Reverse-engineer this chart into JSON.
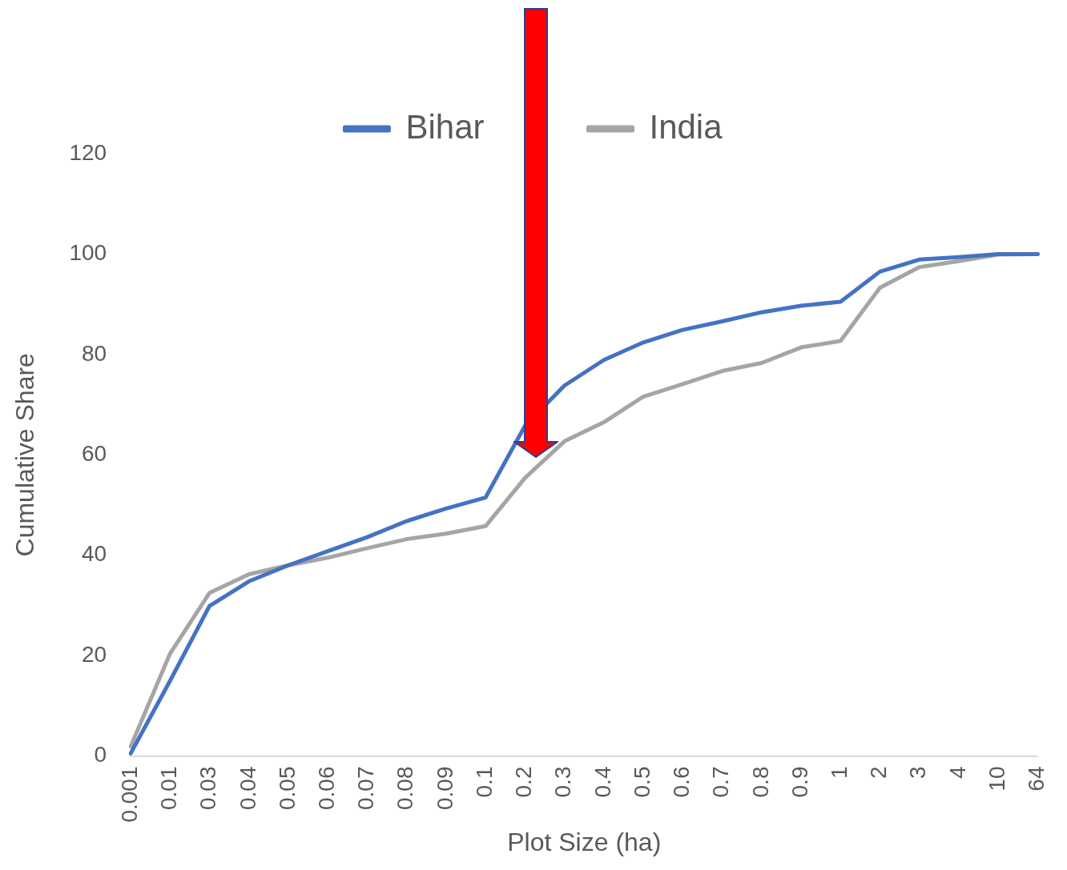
{
  "chart_data": {
    "type": "line",
    "xlabel": "Plot Size (ha)",
    "ylabel": "Cumulative Share",
    "categories": [
      "0.001",
      "0.01",
      "0.03",
      "0.04",
      "0.05",
      "0.06",
      "0.07",
      "0.08",
      "0.09",
      "0.1",
      "0.2",
      "0.3",
      "0.4",
      "0.5",
      "0.6",
      "0.7",
      "0.8",
      "0.9",
      "1",
      "2",
      "3",
      "4",
      "10",
      "64"
    ],
    "series": [
      {
        "name": "Bihar",
        "color": "#4472c4",
        "values": [
          0.5,
          15,
          29.9,
          34.8,
          38,
          40.8,
          43.6,
          46.8,
          49.3,
          51.5,
          65.8,
          73.8,
          78.9,
          82.4,
          84.9,
          86.6,
          88.4,
          89.7,
          90.5,
          96.5,
          98.9,
          99.4,
          100,
          100
        ]
      },
      {
        "name": "India",
        "color": "#a5a5a5",
        "values": [
          1.9,
          20.4,
          32.5,
          36.2,
          38,
          39.5,
          41.4,
          43.2,
          44.3,
          45.8,
          55.4,
          62.7,
          66.5,
          71.6,
          74.1,
          76.7,
          78.3,
          81.4,
          82.7,
          93.3,
          97.4,
          98.6,
          99.9,
          100
        ]
      }
    ],
    "ylim": [
      0,
      120
    ],
    "yticks": [
      0,
      20,
      40,
      60,
      80,
      100,
      120
    ],
    "grid": false,
    "legend": "top",
    "marker": "none",
    "line_style": "solid"
  }
}
